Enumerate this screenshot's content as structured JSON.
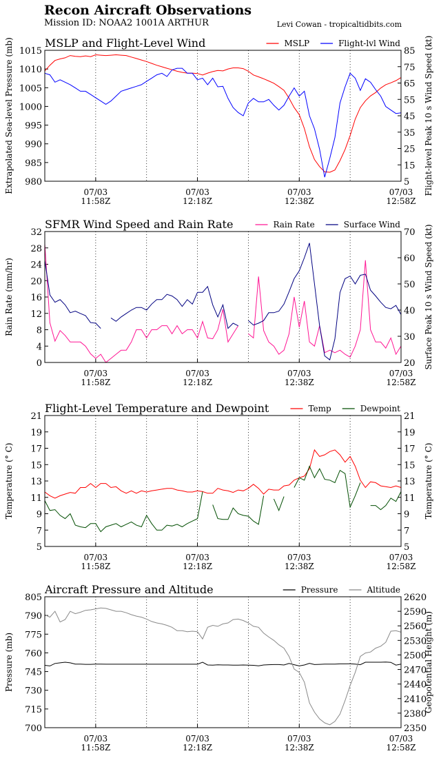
{
  "header": {
    "title": "Recon Aircraft Observations",
    "mission": "Mission ID: NOAA2 1001A ARTHUR",
    "credit": "Levi Cowan - tropicaltidbits.com"
  },
  "x_ticks": [
    {
      "date": "07/03",
      "time": "11:58Z"
    },
    {
      "date": "07/03",
      "time": "12:18Z"
    },
    {
      "date": "07/03",
      "time": "12:38Z"
    },
    {
      "date": "07/03",
      "time": "12:58Z"
    }
  ],
  "x": [
    "11:48",
    "11:49",
    "11:50",
    "11:51",
    "11:52",
    "11:53",
    "11:54",
    "11:55",
    "11:56",
    "11:57",
    "11:58",
    "11:59",
    "12:00",
    "12:01",
    "12:02",
    "12:03",
    "12:04",
    "12:05",
    "12:06",
    "12:07",
    "12:08",
    "12:09",
    "12:10",
    "12:11",
    "12:12",
    "12:13",
    "12:14",
    "12:15",
    "12:16",
    "12:17",
    "12:18",
    "12:19",
    "12:20",
    "12:21",
    "12:22",
    "12:23",
    "12:24",
    "12:25",
    "12:26",
    "12:27",
    "12:28",
    "12:29",
    "12:30",
    "12:31",
    "12:32",
    "12:33",
    "12:34",
    "12:35",
    "12:36",
    "12:37",
    "12:38",
    "12:39",
    "12:40",
    "12:41",
    "12:42",
    "12:43",
    "12:44",
    "12:45",
    "12:46",
    "12:47",
    "12:48",
    "12:49",
    "12:50",
    "12:51",
    "12:52",
    "12:53",
    "12:54",
    "12:55",
    "12:56",
    "12:57",
    "12:58"
  ],
  "chart_data": [
    {
      "type": "line",
      "title": "MSLP and Flight-Level Wind",
      "xlim": [
        "11:48",
        "12:58"
      ],
      "grid": "vertical dotted every 10 min",
      "legend": "top-right",
      "left_axis": {
        "label": "Extrapolated Sea-level Pressure (mb)",
        "lim": [
          980,
          1015
        ],
        "ticks": [
          980,
          985,
          990,
          995,
          1000,
          1005,
          1010,
          1015
        ]
      },
      "right_axis": {
        "label": "Flight-level Peak 10 s Wind Speed (kt)",
        "lim": [
          5,
          85
        ],
        "ticks": [
          5,
          15,
          25,
          35,
          45,
          55,
          65,
          75,
          85
        ]
      },
      "series": [
        {
          "name": "MSLP",
          "axis": "left",
          "color": "#ff0000",
          "values": [
            1009.5,
            1011,
            1012.3,
            1012.7,
            1013,
            1013.6,
            1013.4,
            1013.3,
            1013.5,
            1013.3,
            1013.8,
            1013.7,
            1013.6,
            1013.7,
            1013.8,
            1013.7,
            1013.6,
            1013.2,
            1012.8,
            1012.4,
            1012,
            1011.5,
            1011,
            1010.6,
            1010.2,
            1009.8,
            1009.4,
            1009.1,
            1008.9,
            1008.9,
            1008.8,
            1008.4,
            1008.9,
            1009.3,
            1009.6,
            1009.5,
            1010,
            1010.3,
            1010.3,
            1010.1,
            1009.4,
            1008.4,
            1007.9,
            1007.4,
            1006.8,
            1006.2,
            1005.3,
            1004.3,
            1002.2,
            999.7,
            997.8,
            994.1,
            989.2,
            985.8,
            983.9,
            982.5,
            982.4,
            983,
            985.5,
            988.5,
            992.2,
            996.6,
            999.7,
            1001.5,
            1002.8,
            1003.7,
            1004.9,
            1005.8,
            1006.3,
            1006.9,
            1007.7
          ]
        },
        {
          "name": "Flight-lvl Wind",
          "axis": "right",
          "color": "#0000ff",
          "values": [
            71,
            70,
            65.5,
            67,
            65.5,
            64,
            62,
            60,
            60,
            58,
            56,
            54,
            52,
            54,
            57,
            60,
            61,
            62,
            63,
            64,
            66,
            68,
            70,
            71,
            69,
            73,
            74,
            74,
            71,
            71,
            67,
            68,
            64,
            68,
            62.7,
            63,
            55.6,
            50,
            47,
            45,
            52.8,
            55.6,
            53.5,
            53.5,
            55,
            51.4,
            48.5,
            51.4,
            57,
            62,
            57,
            60,
            45,
            37,
            24.5,
            7.5,
            19,
            31.6,
            52.8,
            62.7,
            71,
            68,
            60.5,
            67.6,
            65.5,
            61,
            57,
            50.7,
            48.5,
            46.4,
            46.8
          ]
        }
      ]
    },
    {
      "type": "line",
      "title": "SFMR Wind Speed and Rain Rate",
      "xlim": [
        "11:48",
        "12:58"
      ],
      "grid": "vertical dotted every 10 min",
      "legend": "top-right",
      "left_axis": {
        "label": "Rain Rate (mm/hr)",
        "lim": [
          0,
          32
        ],
        "ticks": [
          0,
          4,
          8,
          12,
          16,
          20,
          24,
          28,
          32
        ]
      },
      "right_axis": {
        "label": "Surface Peak 10 s Wind Speed (kt)",
        "lim": [
          20,
          70
        ],
        "ticks": [
          20,
          30,
          40,
          50,
          60,
          70
        ]
      },
      "series": [
        {
          "name": "Rain Rate",
          "axis": "left",
          "color": "#ff1493",
          "values": [
            29,
            9.7,
            5.2,
            7.8,
            6.6,
            5,
            5,
            5,
            4,
            2.1,
            1,
            2,
            0,
            1,
            2,
            3,
            3,
            5,
            8,
            8,
            6,
            8,
            8,
            9,
            9,
            7,
            9,
            7,
            8,
            8,
            6,
            10,
            6,
            5.8,
            8,
            13,
            5,
            7,
            9,
            null,
            7,
            6,
            21,
            7.8,
            5,
            4,
            2,
            3,
            7,
            16,
            8.6,
            15,
            5,
            4,
            9,
            2.4,
            3,
            2.4,
            3,
            2,
            1.3,
            4,
            8,
            25,
            8,
            5,
            5,
            3.5,
            6,
            2,
            4
          ]
        },
        {
          "name": "Surface Wind",
          "axis": "right",
          "color": "#000080",
          "values": [
            59,
            45.8,
            43,
            44,
            42,
            39,
            39.6,
            38.7,
            37.9,
            35.2,
            35,
            33,
            null,
            37,
            35.7,
            37.4,
            38.7,
            40,
            41,
            41,
            40,
            42.3,
            44,
            44,
            46,
            45.4,
            44,
            41.4,
            44,
            42.3,
            46.8,
            46.8,
            49,
            42,
            37.4,
            42,
            33,
            35,
            34,
            null,
            36,
            34.3,
            35,
            36,
            39,
            39,
            39.6,
            42.3,
            47,
            52,
            55,
            60,
            65.6,
            50,
            34,
            22.5,
            21,
            29,
            46.7,
            52,
            53,
            50,
            53.3,
            53.7,
            47.6,
            45.4,
            43,
            41,
            40.5,
            41.8,
            38.3
          ]
        }
      ]
    },
    {
      "type": "line",
      "title": "Flight-Level Temperature and Dewpoint",
      "xlim": [
        "11:48",
        "12:58"
      ],
      "grid": "vertical dotted every 10 min",
      "legend": "top-right",
      "left_axis": {
        "label": "Temperature (° C)",
        "lim": [
          5,
          21
        ],
        "ticks": [
          5,
          7,
          9,
          11,
          13,
          15,
          17,
          19,
          21
        ]
      },
      "right_axis": {
        "label": "Temperature (° C)",
        "lim": [
          5,
          21
        ],
        "ticks": [
          5,
          7,
          9,
          11,
          13,
          15,
          17,
          19,
          21
        ]
      },
      "series": [
        {
          "name": "Temp",
          "axis": "left",
          "color": "#ff0000",
          "values": [
            11.65,
            11.2,
            10.9,
            11.2,
            11.4,
            11.6,
            11.5,
            12.2,
            12.2,
            12.7,
            12.2,
            12.7,
            12.7,
            12.2,
            12.3,
            11.8,
            11.5,
            11.8,
            11.5,
            11.8,
            11.65,
            11.8,
            11.9,
            12,
            12.1,
            12.1,
            11.9,
            11.8,
            11.65,
            11.65,
            11.8,
            11.7,
            11.5,
            11.5,
            12.1,
            11.9,
            11.8,
            11.6,
            11.9,
            11.8,
            12.1,
            12.6,
            12.1,
            11.4,
            12,
            11.9,
            11.9,
            12.4,
            12.5,
            13.1,
            13.4,
            13.6,
            14.5,
            16.8,
            16,
            16.2,
            16.6,
            16.8,
            16.2,
            15.3,
            16,
            14.8,
            13.1,
            12.2,
            12.9,
            12.8,
            12.4,
            12.3,
            12.2,
            12.4,
            12.2
          ]
        },
        {
          "name": "Dewpoint",
          "axis": "left",
          "color": "#004d00",
          "values": [
            10.6,
            9.4,
            9.5,
            8.8,
            8.4,
            9,
            7.6,
            7.4,
            7.3,
            7.8,
            7.8,
            6.8,
            7.4,
            7.6,
            7.8,
            7.4,
            7.7,
            8,
            7.6,
            7.4,
            8.8,
            7.8,
            7,
            7,
            7.6,
            7.5,
            7.7,
            7.4,
            7.8,
            8.1,
            8.4,
            11.7,
            null,
            10.1,
            8.4,
            8.3,
            8.3,
            9.7,
            9,
            8.8,
            8.7,
            8.1,
            7.7,
            11.2,
            null,
            10.8,
            9.4,
            11.1,
            null,
            12.2,
            13.4,
            13.1,
            14.8,
            13.4,
            14.5,
            13.2,
            13.1,
            12.8,
            14.3,
            13.9,
            9.8,
            11.2,
            12.8,
            null,
            10,
            10,
            9.5,
            10,
            10.9,
            10.5,
            11.7
          ]
        }
      ]
    },
    {
      "type": "line",
      "title": "Aircraft Pressure and Altitude",
      "xlim": [
        "11:48",
        "12:58"
      ],
      "grid": "vertical dotted every 10 min",
      "legend": "top-right",
      "left_axis": {
        "label": "Pressure (mb)",
        "lim": [
          700,
          805
        ],
        "ticks": [
          700,
          715,
          730,
          745,
          760,
          775,
          790,
          805
        ]
      },
      "right_axis": {
        "label": "Geopotential Height (m)",
        "lim": [
          2350,
          2620
        ],
        "ticks": [
          2350,
          2380,
          2410,
          2440,
          2470,
          2500,
          2530,
          2560,
          2590,
          2620
        ]
      },
      "series": [
        {
          "name": "Pressure",
          "axis": "left",
          "color": "#000000",
          "values": [
            750,
            749.5,
            751.5,
            752,
            752.5,
            752,
            751,
            751,
            750.8,
            750.8,
            751,
            751,
            750.9,
            750.9,
            750.9,
            750.9,
            750.9,
            750.9,
            750.9,
            750.9,
            750.9,
            750.9,
            750.9,
            750.9,
            750.9,
            750.9,
            750.9,
            750.9,
            750.9,
            750.9,
            750.9,
            752.5,
            750.3,
            750.2,
            750.4,
            750.3,
            750.3,
            750.2,
            750.1,
            750.3,
            750.1,
            750,
            749.6,
            750.3,
            750.5,
            750.6,
            750.6,
            750.3,
            751.5,
            750.5,
            749.5,
            750.3,
            751.6,
            750.6,
            750.8,
            751,
            751,
            751,
            751.2,
            751.2,
            751.3,
            751,
            750.5,
            752.5,
            752.5,
            752.5,
            752.5,
            752.6,
            752.4,
            750.2,
            751
          ]
        },
        {
          "name": "Altitude",
          "axis": "right",
          "color": "#888888",
          "values": [
            2583,
            2578,
            2590,
            2568,
            2573,
            2590,
            2585,
            2588,
            2592,
            2593,
            2595,
            2597,
            2596,
            2593,
            2590,
            2590,
            2587,
            2583,
            2580,
            2578,
            2574,
            2569,
            2566,
            2564,
            2561,
            2557,
            2550,
            2550,
            2548,
            2549,
            2548,
            2533,
            2557,
            2561,
            2559,
            2564,
            2566,
            2573,
            2574,
            2571,
            2566,
            2559,
            2557,
            2545,
            2537,
            2530,
            2521,
            2514,
            2497,
            2471,
            2464,
            2444,
            2401,
            2382,
            2368,
            2360,
            2356,
            2363,
            2378,
            2406,
            2437,
            2464,
            2497,
            2504,
            2506,
            2514,
            2518,
            2526,
            2549,
            2550,
            2547
          ]
        }
      ]
    }
  ]
}
